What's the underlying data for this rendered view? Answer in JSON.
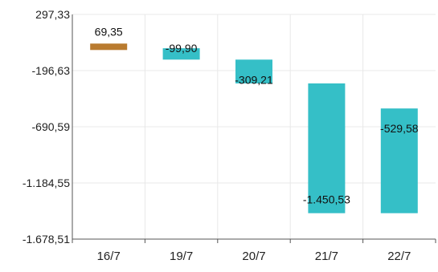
{
  "chart_data": {
    "type": "bar",
    "title": "",
    "xlabel": "",
    "ylabel": "",
    "categories": [
      "16/7",
      "19/7",
      "20/7",
      "21/7",
      "22/7"
    ],
    "values": [
      69.35,
      -99.9,
      -309.21,
      -1450.53,
      -529.58
    ],
    "value_labels": [
      "69,35",
      "-99,90",
      "-309,21",
      "-1.450,53",
      "-529,58"
    ],
    "y_ticks": [
      297.33,
      -196.63,
      -690.59,
      -1184.55,
      -1678.51
    ],
    "y_tick_labels": [
      "297,33",
      "-196,63",
      "-690,59",
      "-1.184,55",
      "-1.678,51"
    ],
    "ylim": [
      -1678.51,
      297.33
    ],
    "grid": true,
    "legend": "none",
    "colors": {
      "positive": "#b97b2f",
      "negative": "#35bfc7",
      "grid": "#e8e8e8",
      "axis": "#555555"
    }
  }
}
